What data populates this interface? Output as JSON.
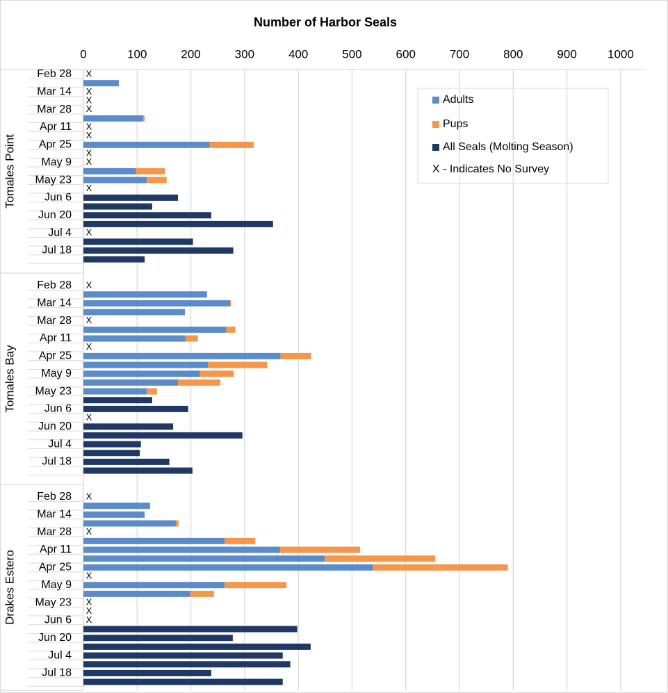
{
  "chart_data": {
    "type": "bar",
    "orientation": "horizontal",
    "stacked": true,
    "title": "Number of Harbor Seals",
    "xlim": [
      0,
      1048
    ],
    "xticks": [
      0,
      100,
      200,
      300,
      400,
      500,
      600,
      700,
      800,
      900,
      1000
    ],
    "grid": true,
    "series": [
      {
        "name": "Adults",
        "color": "#5b8bc8"
      },
      {
        "name": "Pups",
        "color": "#f4974a"
      },
      {
        "name": "All Seals (Molting Season)",
        "color": "#1f3864"
      }
    ],
    "no_survey_symbol": "X",
    "legend_note": "X - Indicates No Survey",
    "legend": "upper right",
    "groups": [
      {
        "name": "Tomales Point",
        "categories": [
          "Feb 28",
          null,
          "Mar 14",
          null,
          "Mar 28",
          null,
          "Apr 11",
          null,
          "Apr 25",
          null,
          "May 9",
          null,
          "May 23",
          null,
          "Jun 6",
          null,
          "Jun 20",
          null,
          "Jul 4",
          null,
          "Jul 18",
          null
        ],
        "values": [
          [
            null,
            66,
            null,
            null,
            null,
            111,
            null,
            null,
            235,
            null,
            null,
            98,
            118,
            null,
            null,
            null,
            null,
            null,
            null,
            null,
            null,
            null
          ],
          [
            null,
            null,
            null,
            null,
            null,
            3,
            null,
            null,
            82,
            null,
            null,
            54,
            37,
            null,
            null,
            null,
            null,
            null,
            null,
            null,
            null,
            null
          ],
          [
            null,
            null,
            null,
            null,
            null,
            null,
            null,
            null,
            null,
            null,
            null,
            null,
            null,
            null,
            176,
            128,
            238,
            353,
            null,
            204,
            279,
            114
          ]
        ]
      },
      {
        "name": "Tomales Bay",
        "categories": [
          "Feb 28",
          null,
          "Mar 14",
          null,
          "Mar 28",
          null,
          "Apr 11",
          null,
          "Apr 25",
          null,
          "May 9",
          null,
          "May 23",
          null,
          "Jun 6",
          null,
          "Jun 20",
          null,
          "Jul 4",
          null,
          "Jul 18",
          null
        ],
        "values": [
          [
            null,
            230,
            273,
            189,
            null,
            266,
            190,
            null,
            367,
            232,
            217,
            176,
            118,
            null,
            null,
            null,
            null,
            null,
            null,
            null,
            null,
            null
          ],
          [
            null,
            null,
            2,
            null,
            null,
            17,
            23,
            null,
            57,
            110,
            63,
            79,
            19,
            null,
            null,
            null,
            null,
            null,
            null,
            null,
            null,
            null
          ],
          [
            null,
            null,
            null,
            null,
            null,
            null,
            null,
            null,
            null,
            null,
            null,
            null,
            null,
            128,
            195,
            null,
            167,
            296,
            107,
            105,
            160,
            203
          ]
        ]
      },
      {
        "name": "Drakes Estero",
        "categories": [
          "Feb 28",
          null,
          "Mar 14",
          null,
          "Mar 28",
          null,
          "Apr 11",
          null,
          "Apr 25",
          null,
          "May 9",
          null,
          "May 23",
          null,
          "Jun 6",
          null,
          "Jun 20",
          null,
          "Jul 4",
          null,
          "Jul 18",
          null
        ],
        "values": [
          [
            null,
            124,
            114,
            172,
            null,
            263,
            366,
            449,
            539,
            null,
            263,
            199,
            null,
            null,
            null,
            null,
            null,
            null,
            null,
            null,
            null,
            null
          ],
          [
            null,
            null,
            null,
            5,
            null,
            57,
            149,
            206,
            251,
            null,
            115,
            44,
            null,
            null,
            null,
            null,
            null,
            null,
            null,
            null,
            null,
            null
          ],
          [
            null,
            null,
            null,
            null,
            null,
            null,
            null,
            null,
            null,
            null,
            null,
            null,
            null,
            null,
            null,
            398,
            278,
            423,
            371,
            385,
            238,
            371
          ]
        ]
      }
    ]
  }
}
